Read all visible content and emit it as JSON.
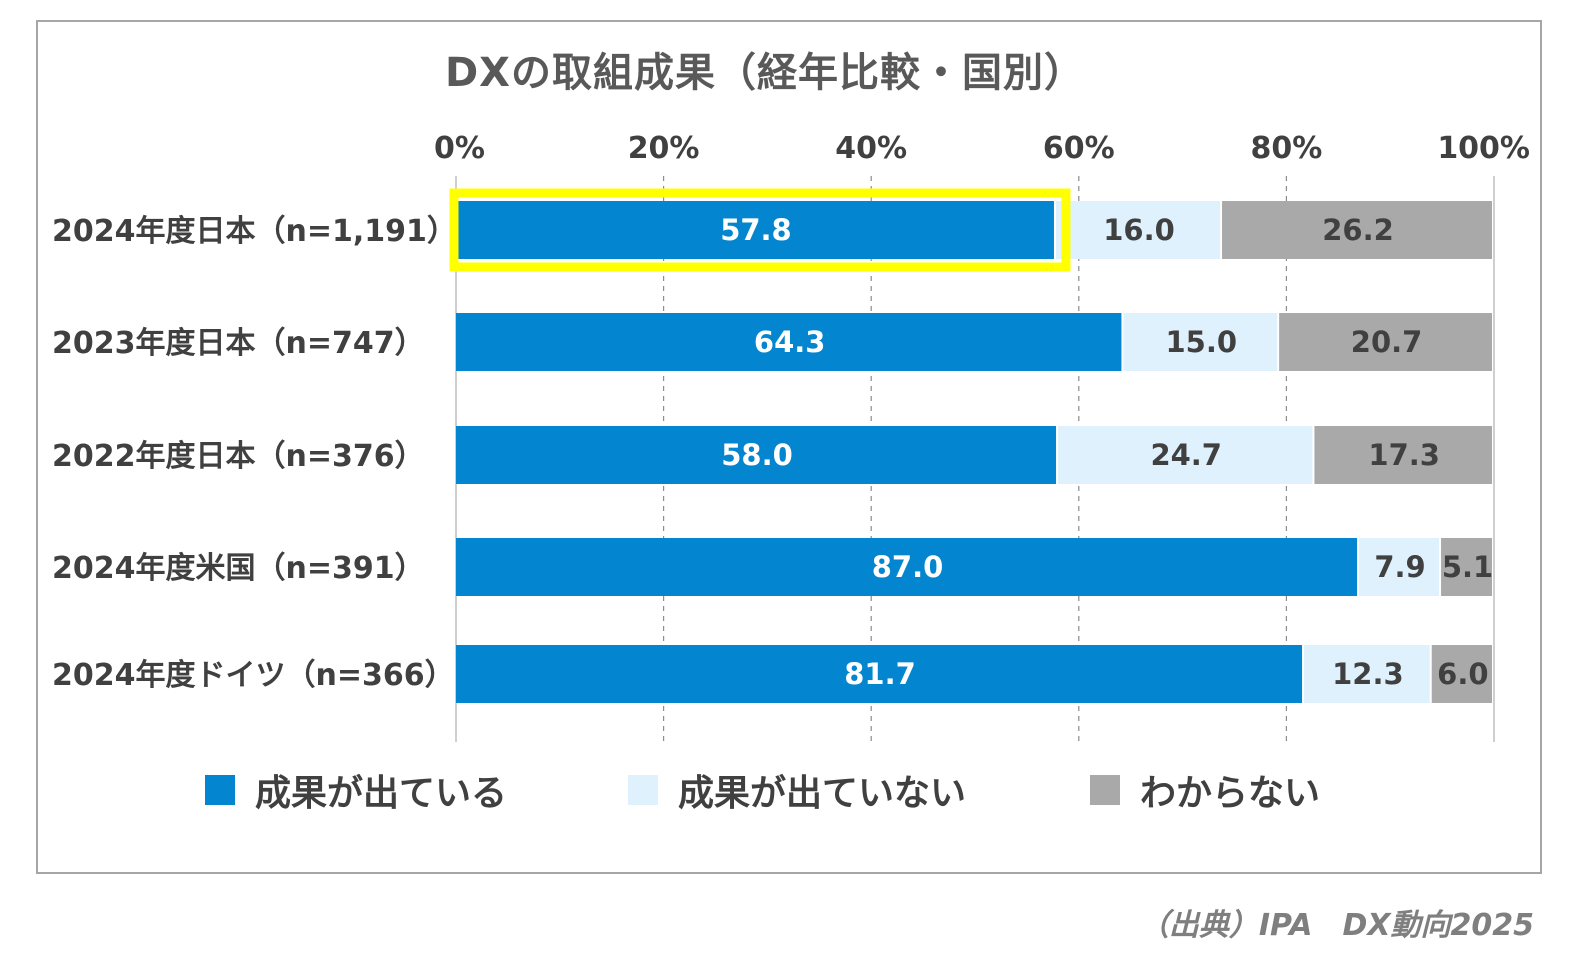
{
  "chart_data": {
    "type": "bar",
    "orientation": "horizontal",
    "stacked": "100%",
    "title": "DXの取組成果（経年比較・国別）",
    "xlim": [
      0,
      100
    ],
    "x_ticks": [
      "0%",
      "20%",
      "40%",
      "60%",
      "80%",
      "100%"
    ],
    "grid": "dashed vertical",
    "categories": [
      "2024年度日本（n=1,191）",
      "2023年度日本（n=747）",
      "2022年度日本（n=376）",
      "2024年度米国（n=391）",
      "2024年度ドイツ（n=366）"
    ],
    "series": [
      {
        "name": "成果が出ている",
        "color": "#0386cf",
        "label_color": "#ffffff",
        "values": [
          57.8,
          64.3,
          58.0,
          87.0,
          81.7
        ],
        "labels": [
          "57.8",
          "64.3",
          "58.0",
          "87.0",
          "81.7"
        ]
      },
      {
        "name": "成果が出ていない",
        "color": "#dff1fc",
        "label_color": "#404040",
        "values": [
          16.0,
          15.0,
          24.7,
          7.9,
          12.3
        ],
        "labels": [
          "16.0",
          "15.0",
          "24.7",
          "7.9",
          "12.3"
        ]
      },
      {
        "name": "わからない",
        "color": "#a9a9a9",
        "label_color": "#404040",
        "values": [
          26.2,
          20.7,
          17.3,
          5.1,
          6.0
        ],
        "labels": [
          "26.2",
          "20.7",
          "17.3",
          "5.1",
          "6.0"
        ]
      }
    ],
    "highlight": {
      "category_index": 0,
      "series_index": 0,
      "color": "#ffff00"
    },
    "legend_position": "bottom"
  },
  "source_note": "（出典）IPA　DX動向2025"
}
